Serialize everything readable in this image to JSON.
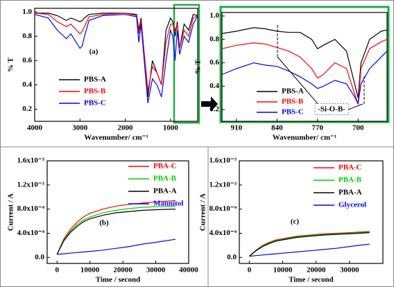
{
  "chart_data": [
    {
      "type": "line",
      "x_label": "Wavenumber/ cm⁻¹",
      "y_label": "% T",
      "annotations": [
        "(a)"
      ],
      "x": [
        4000,
        3700,
        3500,
        3300,
        3200,
        3000,
        2950,
        2900,
        2800,
        2500,
        2000,
        1750,
        1700,
        1650,
        1500,
        1400,
        1300,
        1200,
        1100,
        1000,
        950,
        900,
        850,
        800,
        700,
        600,
        500,
        400
      ],
      "series": [
        {
          "name": "PBS-A",
          "color": "#000000",
          "values": [
            0.99,
            0.99,
            0.97,
            0.93,
            0.95,
            0.92,
            0.93,
            0.95,
            0.98,
            0.99,
            0.99,
            0.98,
            0.85,
            0.95,
            0.3,
            0.6,
            0.5,
            0.4,
            0.85,
            0.95,
            0.92,
            0.8,
            0.92,
            0.7,
            0.9,
            0.85,
            0.98,
            0.97
          ]
        },
        {
          "name": "PBS-B",
          "color": "#ff0000",
          "values": [
            0.99,
            0.98,
            0.92,
            0.88,
            0.9,
            0.82,
            0.84,
            0.88,
            0.96,
            0.98,
            0.99,
            0.97,
            0.82,
            0.93,
            0.35,
            0.55,
            0.5,
            0.4,
            0.75,
            0.9,
            0.9,
            0.85,
            0.9,
            0.7,
            0.85,
            0.8,
            0.95,
            0.97
          ]
        },
        {
          "name": "PBS-C",
          "color": "#0000ff",
          "values": [
            0.98,
            0.95,
            0.85,
            0.78,
            0.82,
            0.7,
            0.72,
            0.8,
            0.93,
            0.97,
            0.98,
            0.96,
            0.75,
            0.9,
            0.25,
            0.45,
            0.4,
            0.3,
            0.6,
            0.85,
            0.8,
            0.6,
            0.85,
            0.65,
            0.8,
            0.75,
            0.9,
            0.97
          ]
        }
      ],
      "xlim": [
        4000,
        400
      ],
      "xticks": [
        4000,
        3000,
        2000,
        1000
      ],
      "ylim": [
        0.1,
        1.03
      ],
      "yticks": [
        0.2,
        0.4,
        0.6,
        0.8,
        {
          "value": 1,
          "label": "1.0"
        }
      ]
    },
    {
      "type": "line",
      "x_label": "Wavenumber/ cm⁻¹",
      "y_label": "% T",
      "annotations": [
        "-Si-O-B-"
      ],
      "x": [
        935,
        910,
        880,
        860,
        840,
        820,
        800,
        780,
        770,
        760,
        740,
        720,
        705,
        700,
        695,
        680,
        660,
        650
      ],
      "series": [
        {
          "name": "PBS-A",
          "color": "#000000",
          "values": [
            0.85,
            0.87,
            0.9,
            0.89,
            0.87,
            0.86,
            0.86,
            0.8,
            0.72,
            0.75,
            0.8,
            0.7,
            0.4,
            0.3,
            0.6,
            0.8,
            0.87,
            0.88
          ]
        },
        {
          "name": "PBS-B",
          "color": "#ff0000",
          "values": [
            0.72,
            0.75,
            0.77,
            0.76,
            0.73,
            0.7,
            0.65,
            0.55,
            0.47,
            0.5,
            0.6,
            0.55,
            0.32,
            0.25,
            0.55,
            0.72,
            0.78,
            0.8
          ]
        },
        {
          "name": "PBS-C",
          "color": "#0000ff",
          "values": [
            0.5,
            0.55,
            0.6,
            0.58,
            0.57,
            0.53,
            0.48,
            0.42,
            0.38,
            0.4,
            0.45,
            0.42,
            0.3,
            0.25,
            0.42,
            0.55,
            0.65,
            0.7
          ]
        }
      ],
      "xlim": [
        935,
        650
      ],
      "xticks": [
        910,
        840,
        770,
        700
      ],
      "ylim": [
        0.1,
        1.03
      ],
      "yticks": [
        0.2,
        0.4,
        0.6,
        0.8,
        {
          "value": 1,
          "label": "1.0"
        }
      ]
    },
    {
      "type": "line",
      "x_label": "Time / second",
      "y_label": "Current / A",
      "annotations": [
        "(b)"
      ],
      "x": [
        0,
        2000,
        4000,
        6000,
        8000,
        10000,
        14000,
        18000,
        22000,
        26000,
        30000,
        36000
      ],
      "series": [
        {
          "name": "PBA-C",
          "color": "#ff0000",
          "values": [
            5e-05,
            0.0003,
            0.00046,
            0.00058,
            0.00067,
            0.00073,
            0.0008,
            0.00085,
            0.00088,
            0.0009,
            0.00092,
            0.00094
          ]
        },
        {
          "name": "PBA-B",
          "color": "#00cc00",
          "values": [
            5e-05,
            0.00028,
            0.00043,
            0.00054,
            0.00062,
            0.00067,
            0.00074,
            0.00078,
            0.00081,
            0.00083,
            0.00084,
            0.00085
          ]
        },
        {
          "name": "PBA-A",
          "color": "#000000",
          "values": [
            5e-05,
            0.00027,
            0.00041,
            0.00051,
            0.00059,
            0.00064,
            0.0007,
            0.00074,
            0.00076,
            0.00078,
            0.00079,
            0.0008
          ]
        },
        {
          "name": "Mannitol",
          "color": "#0000ff",
          "values": [
            5e-05,
            6e-05,
            7e-05,
            8e-05,
            9e-05,
            0.0001,
            0.00012,
            0.00015,
            0.00018,
            0.00022,
            0.00025,
            0.0003
          ]
        }
      ],
      "xlim": [
        -3000,
        40000
      ],
      "xticks": [
        0,
        10000,
        20000,
        30000,
        40000
      ],
      "ylim": [
        -0.0001,
        0.0016
      ],
      "yticks": [
        {
          "value": 0,
          "label": "0.0"
        },
        {
          "value": 0.0004,
          "label": "4.0x10⁻⁴"
        },
        {
          "value": 0.0008,
          "label": "8.0x10⁻⁴"
        },
        {
          "value": 0.0012,
          "label": "1.2x10⁻³"
        },
        {
          "value": 0.0016,
          "label": "1.6x10⁻³"
        }
      ]
    },
    {
      "type": "line",
      "x_label": "Time / second",
      "y_label": "Current / A",
      "annotations": [
        "(c)"
      ],
      "x": [
        0,
        2000,
        4000,
        6000,
        8000,
        10000,
        14000,
        18000,
        22000,
        26000,
        30000,
        36000
      ],
      "series": [
        {
          "name": "PBA-C",
          "color": "#ff0000",
          "values": [
            2e-05,
            0.00012,
            0.0002,
            0.00025,
            0.00029,
            0.00031,
            0.00035,
            0.00037,
            0.00039,
            0.0004,
            0.00041,
            0.00043
          ]
        },
        {
          "name": "PBA-B",
          "color": "#00cc00",
          "values": [
            2e-05,
            0.00011,
            0.00019,
            0.00024,
            0.00028,
            0.0003,
            0.00034,
            0.00036,
            0.00038,
            0.00039,
            0.0004,
            0.00042
          ]
        },
        {
          "name": "PBA-A",
          "color": "#000000",
          "values": [
            2e-05,
            0.00011,
            0.00018,
            0.00023,
            0.00027,
            0.00029,
            0.00033,
            0.00035,
            0.00037,
            0.00038,
            0.00039,
            0.00041
          ]
        },
        {
          "name": "Glycerol",
          "color": "#0000ff",
          "values": [
            2e-05,
            3e-05,
            4e-05,
            5e-05,
            6e-05,
            7e-05,
            9e-05,
            0.00011,
            0.00013,
            0.00015,
            0.00018,
            0.00022
          ]
        }
      ],
      "xlim": [
        -3000,
        40000
      ],
      "xticks": [
        0,
        10000,
        20000,
        30000
      ],
      "ylim": [
        -0.0001,
        0.0016
      ],
      "yticks": [
        {
          "value": 0,
          "label": "0.0"
        },
        {
          "value": 0.0004,
          "label": "4.0x10⁻⁴"
        },
        {
          "value": 0.0008,
          "label": "8.0x10⁻⁴"
        },
        {
          "value": 0.0012,
          "label": "1.2x10⁻³"
        },
        {
          "value": 0.0016,
          "label": "1.6x10⁻³"
        }
      ]
    }
  ]
}
